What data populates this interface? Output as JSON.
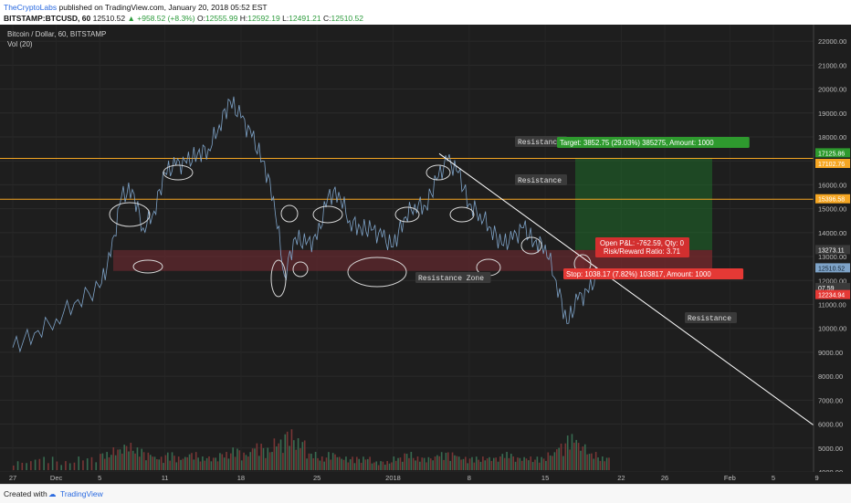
{
  "header": {
    "publisher": "TheCryptoLabs",
    "published_text": "published on TradingView.com, January 20, 2018 05:52 EST",
    "symbol": "BITSTAMP:BTCUSD, 60",
    "last": "12510.52",
    "change": "+958.52 (+8.3%)",
    "o_label": "O:",
    "o_val": "12555.99",
    "h_label": "H:",
    "h_val": "12592.19",
    "l_label": "L:",
    "l_val": "12491.21",
    "c_label": "C:",
    "c_val": "12510.52"
  },
  "legend": {
    "title": "Bitcoin / Dollar, 60, BITSTAMP",
    "indicator": "Vol (20)"
  },
  "footer": {
    "created_with": "Created with",
    "brand": "TradingView"
  },
  "colors": {
    "background": "#1e1e1e",
    "price_line": "#7ea3c8",
    "resistance_line": "#f5a623",
    "trendline": "#ffffff",
    "target_zone": "#1f6b2a",
    "stop_zone": "#7a2a2e",
    "resistance_zone": "#6a2a30",
    "volume_up": "#3d7a5a",
    "volume_down": "#8a3a3a"
  },
  "chart_data": {
    "type": "line",
    "title": "Bitcoin / Dollar, 60, BITSTAMP",
    "ylim": [
      4000,
      22500
    ],
    "y_ticks": [
      22000,
      21000,
      20000,
      19000,
      18000,
      17000,
      16000,
      15000,
      14000,
      13000,
      12000,
      11000,
      10000,
      9000,
      8000,
      7000,
      6000,
      5000,
      4000
    ],
    "x_tick_labels": [
      "27",
      "Dec",
      "5",
      "11",
      "18",
      "25",
      "2018",
      "8",
      "15",
      "22",
      "26",
      "Feb",
      "5",
      "9"
    ],
    "series": [
      {
        "name": "BTCUSD",
        "x": [
          "2017-11-27",
          "2017-11-29",
          "2017-12-01",
          "2017-12-03",
          "2017-12-05",
          "2017-12-06",
          "2017-12-07",
          "2017-12-08",
          "2017-12-09",
          "2017-12-10",
          "2017-12-11",
          "2017-12-12",
          "2017-12-13",
          "2017-12-14",
          "2017-12-15",
          "2017-12-16",
          "2017-12-17",
          "2017-12-18",
          "2017-12-19",
          "2017-12-20",
          "2017-12-21",
          "2017-12-22",
          "2017-12-23",
          "2017-12-24",
          "2017-12-25",
          "2017-12-26",
          "2017-12-27",
          "2017-12-28",
          "2017-12-29",
          "2017-12-30",
          "2017-12-31",
          "2018-01-01",
          "2018-01-02",
          "2018-01-03",
          "2018-01-04",
          "2018-01-05",
          "2018-01-06",
          "2018-01-07",
          "2018-01-08",
          "2018-01-09",
          "2018-01-10",
          "2018-01-11",
          "2018-01-12",
          "2018-01-13",
          "2018-01-14",
          "2018-01-15",
          "2018-01-16",
          "2018-01-17",
          "2018-01-18",
          "2018-01-19",
          "2018-01-20"
        ],
        "values": [
          9200,
          9800,
          10400,
          11200,
          11700,
          13000,
          15500,
          15800,
          14200,
          14900,
          16500,
          16800,
          16900,
          17300,
          17500,
          18500,
          19500,
          18800,
          18000,
          17000,
          15500,
          12200,
          13800,
          13500,
          13700,
          15500,
          15700,
          14500,
          14200,
          14100,
          13800,
          13400,
          14600,
          15200,
          15100,
          16200,
          17000,
          16500,
          15200,
          14800,
          14200,
          13500,
          13700,
          14200,
          13600,
          13500,
          12000,
          10200,
          11200,
          11500,
          12510
        ]
      },
      {
        "name": "Vol (20)",
        "type": "bar",
        "note_values_scale": "relative",
        "values": [
          2,
          3,
          2,
          3,
          4,
          5,
          6,
          5,
          4,
          3,
          4,
          3,
          4,
          3,
          3,
          4,
          5,
          4,
          6,
          5,
          7,
          9,
          7,
          4,
          3,
          4,
          3,
          3,
          3,
          2,
          2,
          3,
          4,
          3,
          3,
          4,
          4,
          3,
          3,
          3,
          3,
          4,
          3,
          3,
          3,
          4,
          6,
          8,
          6,
          4,
          3
        ]
      }
    ],
    "horizontal_lines": [
      {
        "value": 17102.76,
        "label": "17102.76"
      },
      {
        "value": 15396.58,
        "label": "15396.58"
      }
    ],
    "axis_price_labels": [
      {
        "value": 17125.86,
        "label": "17125.86"
      },
      {
        "value": 17102.76,
        "label": "17102.76"
      },
      {
        "value": 15396.58,
        "label": "15396.58"
      },
      {
        "value": 13273.11,
        "label": "13273.11"
      },
      {
        "value": 12510.52,
        "label": "12510.52"
      },
      {
        "value": 12107.59,
        "label": "07.59"
      },
      {
        "value": 12234.94,
        "label": "12234.94"
      }
    ],
    "annotations": {
      "resistance_labels": [
        "Resistance",
        "Resistance",
        "Resistance"
      ],
      "resistance_zone_label": "Resistance Zone",
      "target_label": "Target: 3852.75 (29.03%) 385275, Amount: 1000",
      "open_pl_label": "Open P&L: -762.59, Qty: 0",
      "risk_reward_label": "Risk/Reward Ratio: 3.71",
      "stop_label": "Stop: 1038.17 (7.82%) 103817, Amount: 1000"
    }
  }
}
